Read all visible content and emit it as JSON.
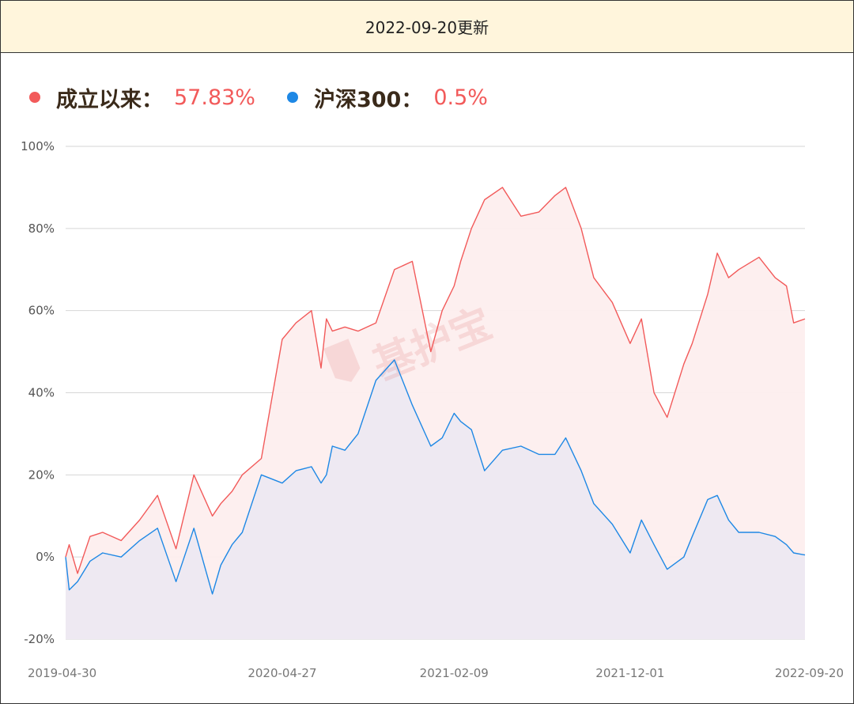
{
  "header": {
    "title": "2022-09-20更新"
  },
  "legend": [
    {
      "label": "成立以来：",
      "value": "57.83%",
      "dot_color": "#f25a5a",
      "value_color": "#f25a5a"
    },
    {
      "label": "沪深300：",
      "value": "0.5%",
      "dot_color": "#1e88e5",
      "value_color": "#f25a5a"
    }
  ],
  "watermark": {
    "text": "基护宝"
  },
  "chart_data": {
    "type": "area",
    "x_ticks": [
      "2019-04-30",
      "2020-04-27",
      "2021-02-09",
      "2021-12-01",
      "2022-09-20"
    ],
    "y_ticks": [
      "100%",
      "80%",
      "60%",
      "40%",
      "20%",
      "0%",
      "-20%"
    ],
    "ylim": [
      -20,
      100
    ],
    "grid": true,
    "x": [
      "2019-04-30",
      "2019-05-06",
      "2019-05-20",
      "2019-06-10",
      "2019-07-01",
      "2019-08-01",
      "2019-09-01",
      "2019-10-01",
      "2019-11-01",
      "2019-12-01",
      "2020-01-01",
      "2020-01-15",
      "2020-02-03",
      "2020-02-20",
      "2020-03-23",
      "2020-04-27",
      "2020-05-20",
      "2020-06-15",
      "2020-07-01",
      "2020-07-10",
      "2020-07-20",
      "2020-08-10",
      "2020-09-01",
      "2020-10-01",
      "2020-11-01",
      "2020-12-01",
      "2021-01-01",
      "2021-01-20",
      "2021-02-09",
      "2021-02-20",
      "2021-03-10",
      "2021-04-01",
      "2021-05-01",
      "2021-06-01",
      "2021-07-01",
      "2021-07-28",
      "2021-08-15",
      "2021-09-10",
      "2021-10-01",
      "2021-11-01",
      "2021-12-01",
      "2021-12-20",
      "2022-01-10",
      "2022-02-01",
      "2022-03-01",
      "2022-03-15",
      "2022-04-10",
      "2022-04-26",
      "2022-05-15",
      "2022-06-01",
      "2022-07-05",
      "2022-08-01",
      "2022-08-20",
      "2022-09-01",
      "2022-09-20"
    ],
    "series": [
      {
        "name": "成立以来",
        "color": "#f25a5a",
        "fill": "#fdeeee",
        "values": [
          0,
          3,
          -4,
          5,
          6,
          4,
          9,
          15,
          2,
          20,
          10,
          13,
          16,
          20,
          24,
          53,
          57,
          60,
          46,
          58,
          55,
          56,
          55,
          57,
          70,
          72,
          50,
          60,
          66,
          72,
          80,
          87,
          90,
          83,
          84,
          88,
          90,
          80,
          68,
          62,
          52,
          58,
          40,
          34,
          47,
          52,
          64,
          74,
          68,
          70,
          73,
          68,
          66,
          57,
          58
        ]
      },
      {
        "name": "沪深300",
        "color": "#1e88e5",
        "fill": "#ece8f2",
        "values": [
          0,
          -8,
          -6,
          -1,
          1,
          0,
          4,
          7,
          -6,
          7,
          -9,
          -2,
          3,
          6,
          20,
          18,
          21,
          22,
          18,
          20,
          27,
          26,
          30,
          43,
          48,
          37,
          27,
          29,
          35,
          33,
          31,
          21,
          26,
          27,
          25,
          25,
          29,
          21,
          13,
          8,
          1,
          9,
          3,
          -3,
          0,
          5,
          14,
          15,
          9,
          6,
          6,
          5,
          3,
          1,
          0.5
        ]
      }
    ]
  }
}
